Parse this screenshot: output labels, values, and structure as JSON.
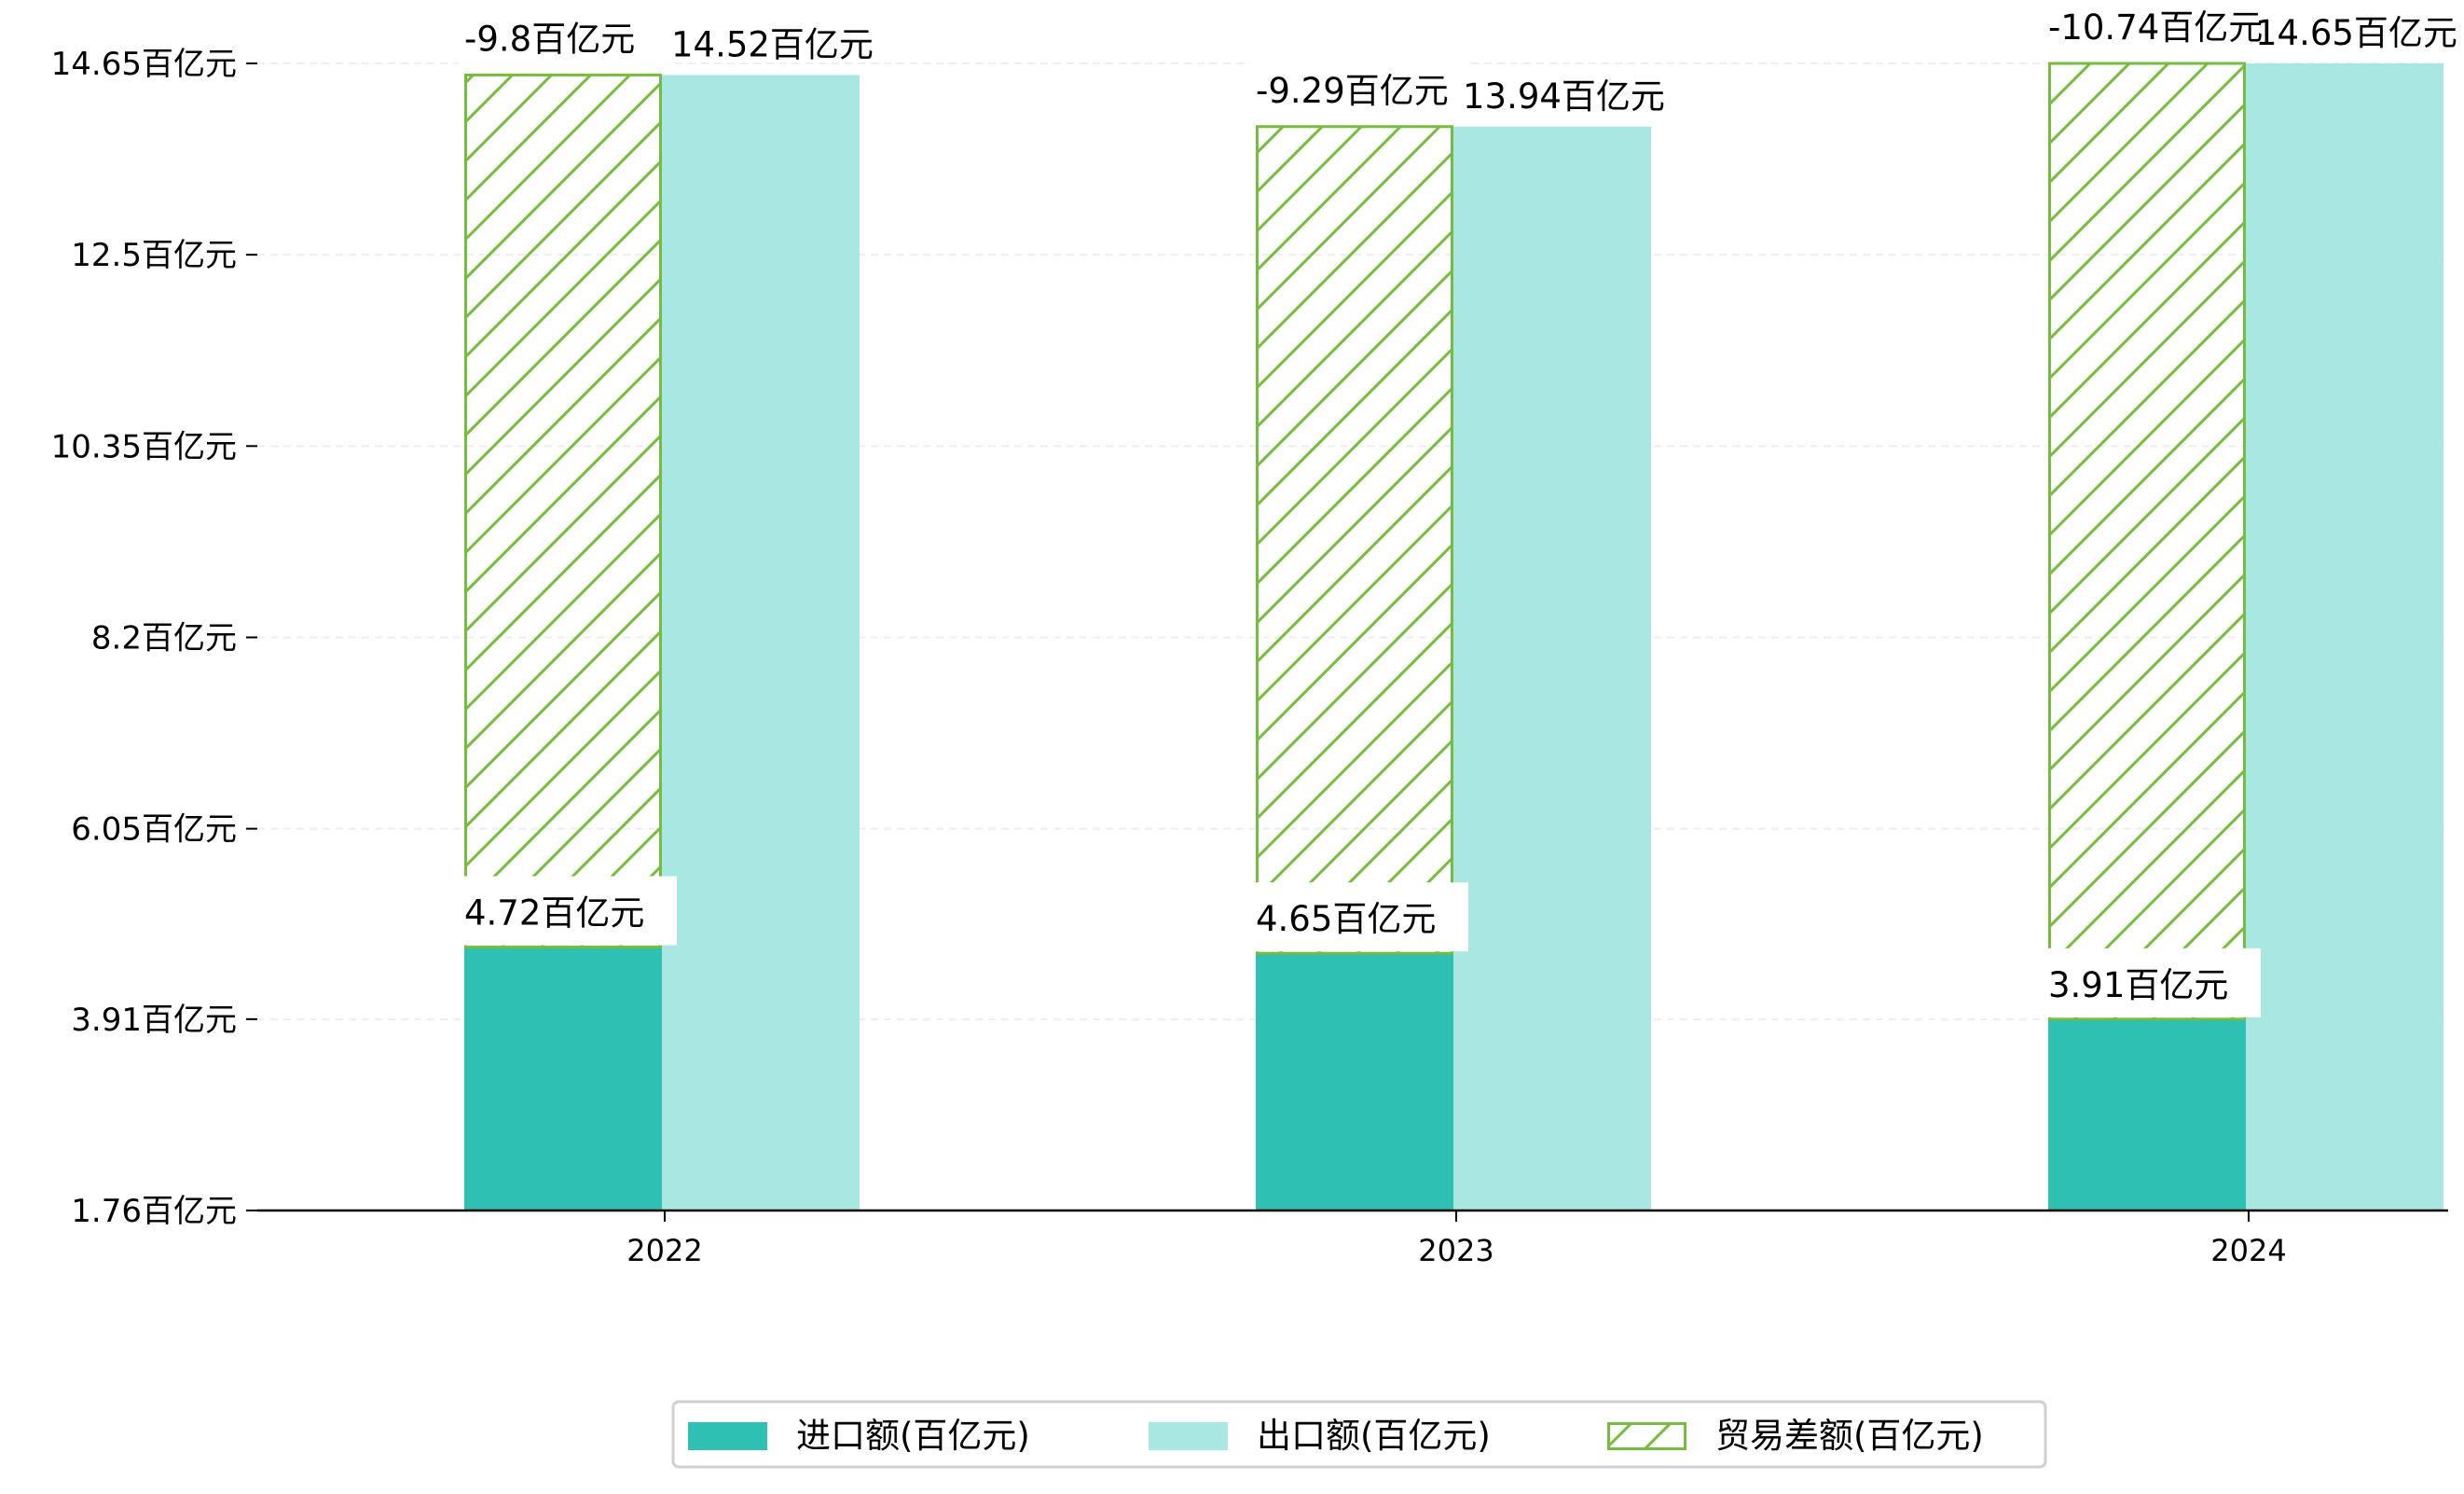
{
  "chart_data": {
    "type": "bar",
    "title": "",
    "xlabel": "",
    "ylabel": "",
    "categories": [
      "2022",
      "2023",
      "2024"
    ],
    "series": [
      {
        "name": "进口额(百亿元)",
        "values": [
          4.72,
          4.65,
          3.91
        ],
        "color": "#2ec0b3",
        "labels": [
          "4.72百亿元",
          "4.65百亿元",
          "3.91百亿元"
        ]
      },
      {
        "name": "出口额(百亿元)",
        "values": [
          14.52,
          13.94,
          14.65
        ],
        "color": "#a8e7e2",
        "labels": [
          "14.52百亿元",
          "13.94百亿元",
          "14.65百亿元"
        ]
      },
      {
        "name": "贸易差额(百亿元)",
        "values": [
          -9.8,
          -9.29,
          -10.74
        ],
        "color": "#76bc3e",
        "hatch": true,
        "labels": [
          "-9.8百亿元",
          "-9.29百亿元",
          "-10.74百亿元"
        ]
      }
    ],
    "ylim": [
      1.76,
      14.65
    ],
    "yticks": [
      1.76,
      3.91,
      6.05,
      8.2,
      10.35,
      12.5,
      14.65
    ],
    "ytick_labels": [
      "1.76百亿元",
      "3.91百亿元",
      "6.05百亿元",
      "8.2百亿元",
      "10.35百亿元",
      "12.5百亿元",
      "14.65百亿元"
    ],
    "grid": true,
    "legend_position": "bottom-center"
  }
}
